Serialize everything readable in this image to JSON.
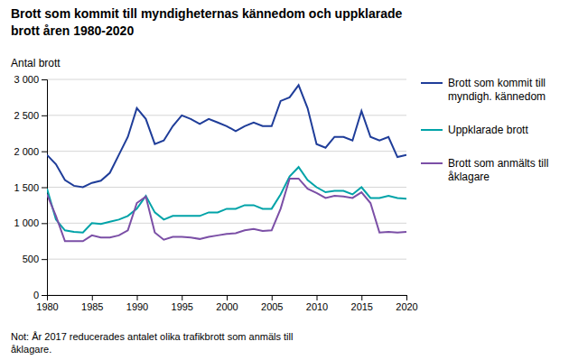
{
  "chart_data": {
    "type": "line",
    "title": "Brott som kommit till myndigheternas kännedom och uppklarade\nbrott åren 1980-2020",
    "y_label": "Antal brott",
    "annotations": [
      "Not: År 2017 reducerades antalet olika trafikbrott som anmäls till\nåklagare."
    ],
    "x": [
      1980,
      1981,
      1982,
      1983,
      1984,
      1985,
      1986,
      1987,
      1988,
      1989,
      1990,
      1991,
      1992,
      1993,
      1994,
      1995,
      1996,
      1997,
      1998,
      1999,
      2000,
      2001,
      2002,
      2003,
      2004,
      2005,
      2006,
      2007,
      2008,
      2009,
      2010,
      2011,
      2012,
      2013,
      2014,
      2015,
      2016,
      2017,
      2018,
      2019,
      2020
    ],
    "series": [
      {
        "name": "Brott som kommit till\nmyndigh. kännedom",
        "color": "#1f3d99",
        "values": [
          1950,
          1820,
          1600,
          1520,
          1500,
          1560,
          1590,
          1700,
          1950,
          2200,
          2600,
          2450,
          2100,
          2150,
          2350,
          2500,
          2450,
          2380,
          2450,
          2400,
          2350,
          2280,
          2350,
          2400,
          2350,
          2350,
          2700,
          2750,
          2920,
          2600,
          2100,
          2050,
          2200,
          2200,
          2150,
          2560,
          2200,
          2150,
          2200,
          1920,
          1950
        ]
      },
      {
        "name": "Uppklarade brott",
        "color": "#00a3a8",
        "values": [
          1480,
          1050,
          900,
          880,
          870,
          1000,
          990,
          1020,
          1050,
          1100,
          1200,
          1380,
          1150,
          1050,
          1100,
          1100,
          1100,
          1100,
          1150,
          1150,
          1200,
          1200,
          1250,
          1250,
          1200,
          1200,
          1400,
          1650,
          1780,
          1600,
          1500,
          1430,
          1450,
          1450,
          1400,
          1500,
          1350,
          1350,
          1380,
          1350,
          1340
        ]
      },
      {
        "name": "Brott som anmälts till\nåklagare",
        "color": "#7b4fa6",
        "values": [
          1400,
          1100,
          750,
          750,
          750,
          830,
          800,
          800,
          830,
          900,
          1280,
          1370,
          870,
          770,
          810,
          810,
          800,
          780,
          810,
          830,
          850,
          860,
          900,
          920,
          890,
          900,
          1200,
          1620,
          1620,
          1480,
          1420,
          1350,
          1380,
          1370,
          1350,
          1430,
          1280,
          870,
          880,
          870,
          880
        ]
      }
    ],
    "xlim": [
      1980,
      2020
    ],
    "xticks": [
      1980,
      1985,
      1990,
      1995,
      2000,
      2005,
      2010,
      2015,
      2020
    ],
    "ylim": [
      0,
      3000
    ],
    "yticks": [
      0,
      500,
      {
        "value": 1000,
        "label": "1 000"
      },
      {
        "value": 1500,
        "label": "1 500"
      },
      {
        "value": 2000,
        "label": "2 000"
      },
      {
        "value": 2500,
        "label": "2 500"
      },
      {
        "value": 3000,
        "label": "3 000"
      }
    ],
    "grid": true,
    "legend": "right"
  }
}
